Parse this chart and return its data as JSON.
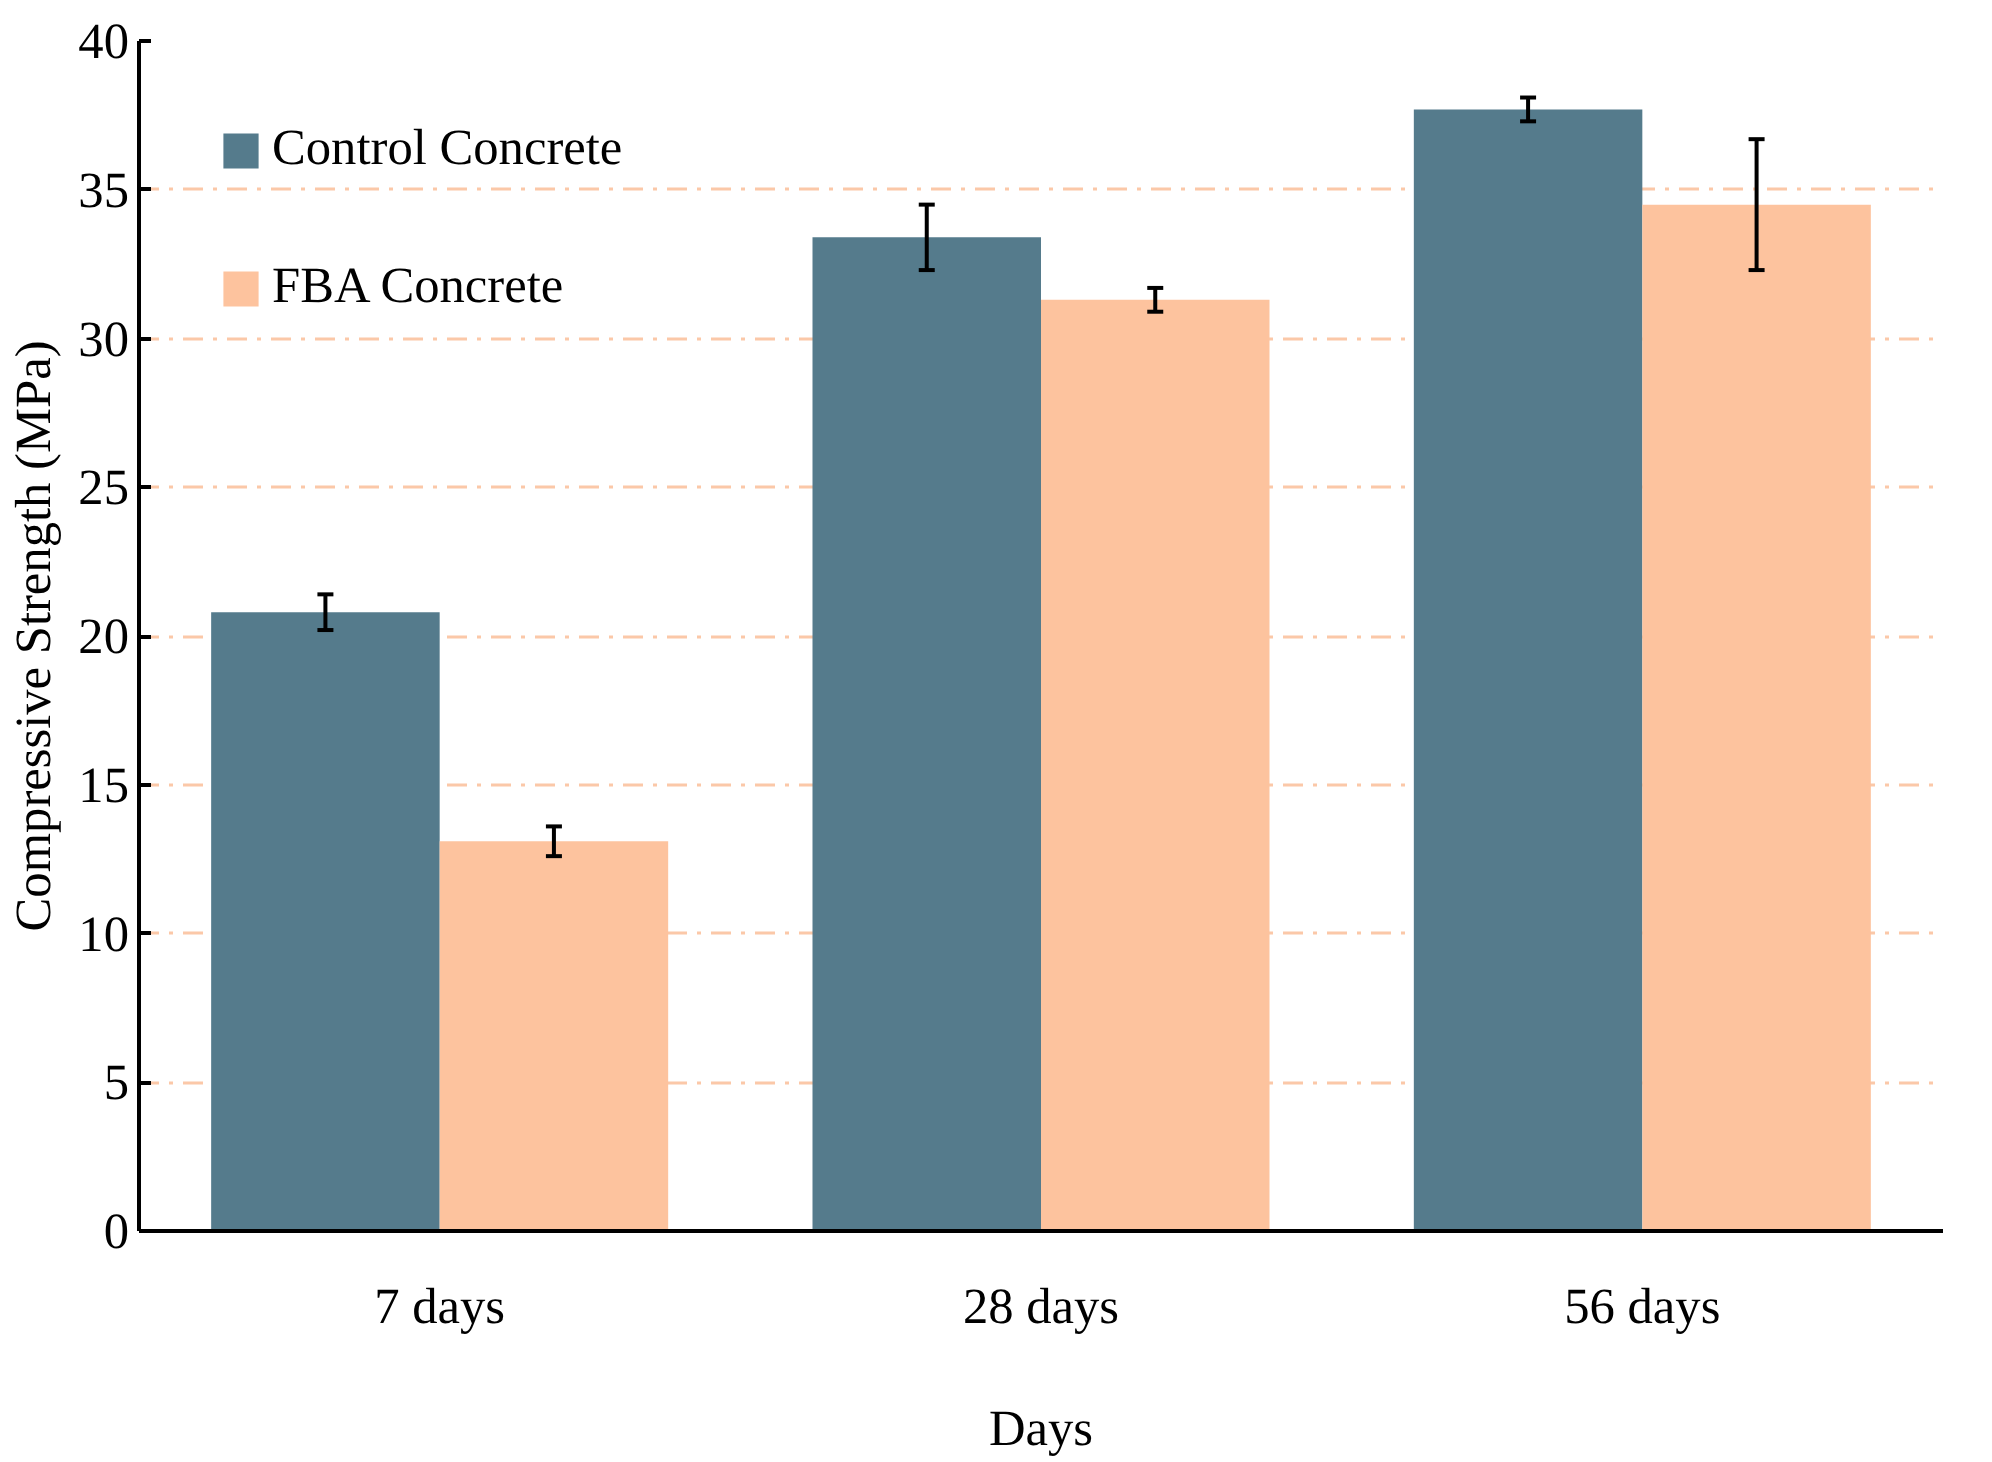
{
  "chart_data": {
    "type": "bar",
    "xlabel": "Days",
    "ylabel": "Compressive Strength (MPa)",
    "categories": [
      "7 days",
      "28 days",
      "56 days"
    ],
    "series": [
      {
        "name": "Control Concrete",
        "color": "#557b8c",
        "values": [
          20.8,
          33.4,
          37.7
        ],
        "errors": [
          0.6,
          1.1,
          0.4
        ]
      },
      {
        "name": "FBA Concrete",
        "color": "#fdc39e",
        "values": [
          13.1,
          31.3,
          34.5
        ],
        "errors": [
          0.5,
          0.4,
          2.2
        ]
      }
    ],
    "ylim": [
      0,
      40
    ],
    "yticks": [
      0,
      5,
      10,
      15,
      20,
      25,
      30,
      35,
      40
    ],
    "grid": "y",
    "legend": "top left"
  }
}
